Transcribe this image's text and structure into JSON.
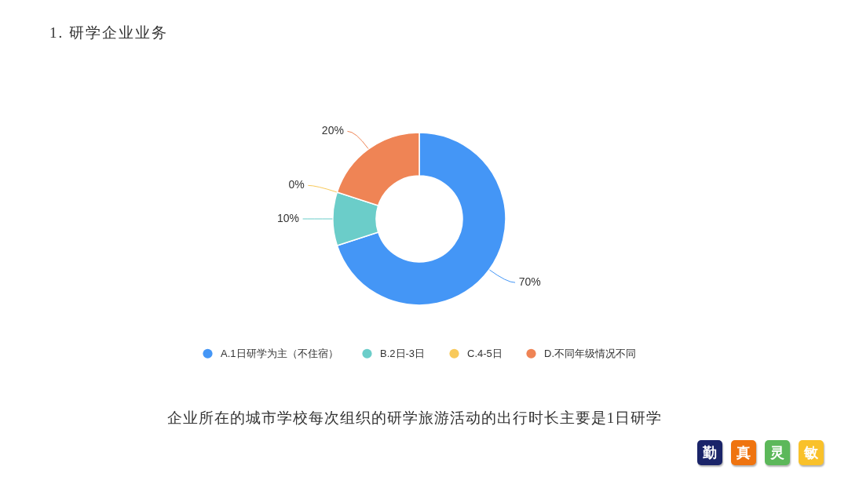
{
  "chart_data": {
    "type": "donut",
    "title": "1. 研学企业业务",
    "categories": [
      "A.1日研学为主（不住宿）",
      "B.2日-3日",
      "C.4-5日",
      "D.不同年级情况不同"
    ],
    "values": [
      70,
      10,
      0,
      20
    ],
    "colors": [
      "#4496f6",
      "#6bcdc9",
      "#f8c95a",
      "#ef8455"
    ],
    "value_labels": [
      "70%",
      "10%",
      "0%",
      "20%"
    ],
    "legend": "bottom",
    "annotations": [
      "企业所在的城市学校每次组织的研学旅游活动的出行时长主要是1日研学",
      "勤",
      "真",
      "灵",
      "敏"
    ]
  }
}
